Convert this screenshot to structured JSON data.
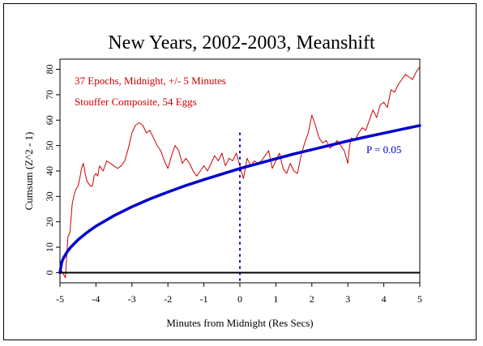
{
  "chart_data": {
    "type": "line",
    "title": "New Years, 2002-2003, Meanshift",
    "xlabel": "Minutes from Midnight (Res Secs)",
    "ylabel": "Cumsum (Z^2 - 1)",
    "xlim": [
      -5,
      5
    ],
    "ylim": [
      -4,
      84
    ],
    "x_ticks": [
      "-5",
      "-4",
      "-3",
      "-2",
      "-1",
      "0",
      "1",
      "2",
      "3",
      "4",
      "5"
    ],
    "y_ticks": [
      "0",
      "10",
      "20",
      "30",
      "40",
      "50",
      "60",
      "70",
      "80"
    ],
    "annotations": [
      "37 Epochs, Midnight, +/- 5 Minutes",
      "Stouffer Composite, 54 Eggs"
    ],
    "significance_label": "P = 0.05",
    "colors": {
      "cumsum": "#cc0000",
      "envelope": "#0000cc",
      "zero_line": "#000000",
      "midnight_marker": "#0000cc",
      "text_red": "#cc0000",
      "text_blue": "#0000cc"
    },
    "series": [
      {
        "kind": "cumsum",
        "x": [
          -5.0,
          -4.93,
          -4.85,
          -4.78,
          -4.72,
          -4.66,
          -4.6,
          -4.55,
          -4.5,
          -4.45,
          -4.4,
          -4.35,
          -4.3,
          -4.25,
          -4.2,
          -4.15,
          -4.1,
          -4.05,
          -4.0,
          -3.95,
          -3.9,
          -3.85,
          -3.8,
          -3.7,
          -3.6,
          -3.5,
          -3.4,
          -3.3,
          -3.2,
          -3.1,
          -3.0,
          -2.9,
          -2.8,
          -2.7,
          -2.6,
          -2.5,
          -2.4,
          -2.3,
          -2.2,
          -2.1,
          -2.0,
          -1.9,
          -1.8,
          -1.7,
          -1.6,
          -1.5,
          -1.4,
          -1.3,
          -1.2,
          -1.1,
          -1.0,
          -0.9,
          -0.8,
          -0.7,
          -0.6,
          -0.5,
          -0.4,
          -0.3,
          -0.2,
          -0.1,
          0.0,
          0.1,
          0.2,
          0.3,
          0.4,
          0.5,
          0.6,
          0.7,
          0.8,
          0.9,
          1.0,
          1.1,
          1.2,
          1.3,
          1.4,
          1.5,
          1.6,
          1.7,
          1.8,
          1.9,
          2.0,
          2.1,
          2.2,
          2.3,
          2.4,
          2.5,
          2.6,
          2.7,
          2.8,
          2.9,
          3.0,
          3.05,
          3.1,
          3.2,
          3.3,
          3.4,
          3.5,
          3.6,
          3.7,
          3.8,
          3.9,
          4.0,
          4.1,
          4.2,
          4.3,
          4.4,
          4.5,
          4.6,
          4.7,
          4.8,
          4.9,
          5.0
        ],
        "y": [
          2,
          0,
          -2,
          14,
          16,
          27,
          31,
          33,
          34,
          37,
          41,
          43,
          39,
          36,
          35,
          34,
          34,
          38,
          39,
          38,
          42,
          41,
          40,
          44,
          43,
          42,
          41,
          42,
          44,
          49,
          55,
          58,
          59,
          58,
          55,
          56,
          53,
          50,
          48,
          44,
          41,
          46,
          50,
          48,
          43,
          45,
          43,
          40,
          38,
          40,
          42,
          40,
          43,
          46,
          44,
          47,
          42,
          45,
          44,
          47,
          42,
          37,
          45,
          42,
          44,
          43,
          44,
          46,
          48,
          41,
          44,
          47,
          41,
          39,
          43,
          40,
          39,
          46,
          51,
          55,
          62,
          58,
          53,
          51,
          52,
          49,
          50,
          52,
          50,
          48,
          43,
          50,
          53,
          52,
          55,
          57,
          56,
          60,
          64,
          61,
          66,
          67,
          65,
          72,
          71,
          74,
          76,
          78,
          77,
          76,
          79,
          81
        ]
      },
      {
        "kind": "p05-envelope",
        "x": [
          -5.0,
          -4.95,
          -4.9,
          -4.8,
          -4.7,
          -4.5,
          -4.25,
          -4.0,
          -3.5,
          -3.0,
          -2.5,
          -2.0,
          -1.5,
          -1.0,
          -0.5,
          0.0,
          0.5,
          1.0,
          1.5,
          2.0,
          2.5,
          3.0,
          3.5,
          4.0,
          4.5,
          5.0
        ],
        "y": [
          0,
          4.1,
          5.8,
          8.2,
          10.0,
          12.9,
          15.8,
          18.3,
          22.4,
          25.9,
          29.0,
          31.7,
          34.3,
          36.6,
          38.8,
          41.0,
          42.9,
          44.8,
          46.7,
          48.4,
          50.1,
          51.8,
          53.4,
          54.9,
          56.4,
          57.9
        ]
      },
      {
        "kind": "midnight-marker",
        "x": [
          0,
          0
        ],
        "y": [
          -3,
          56
        ]
      },
      {
        "kind": "zero-line",
        "x": [
          -5,
          5
        ],
        "y": [
          0,
          0
        ]
      }
    ]
  }
}
